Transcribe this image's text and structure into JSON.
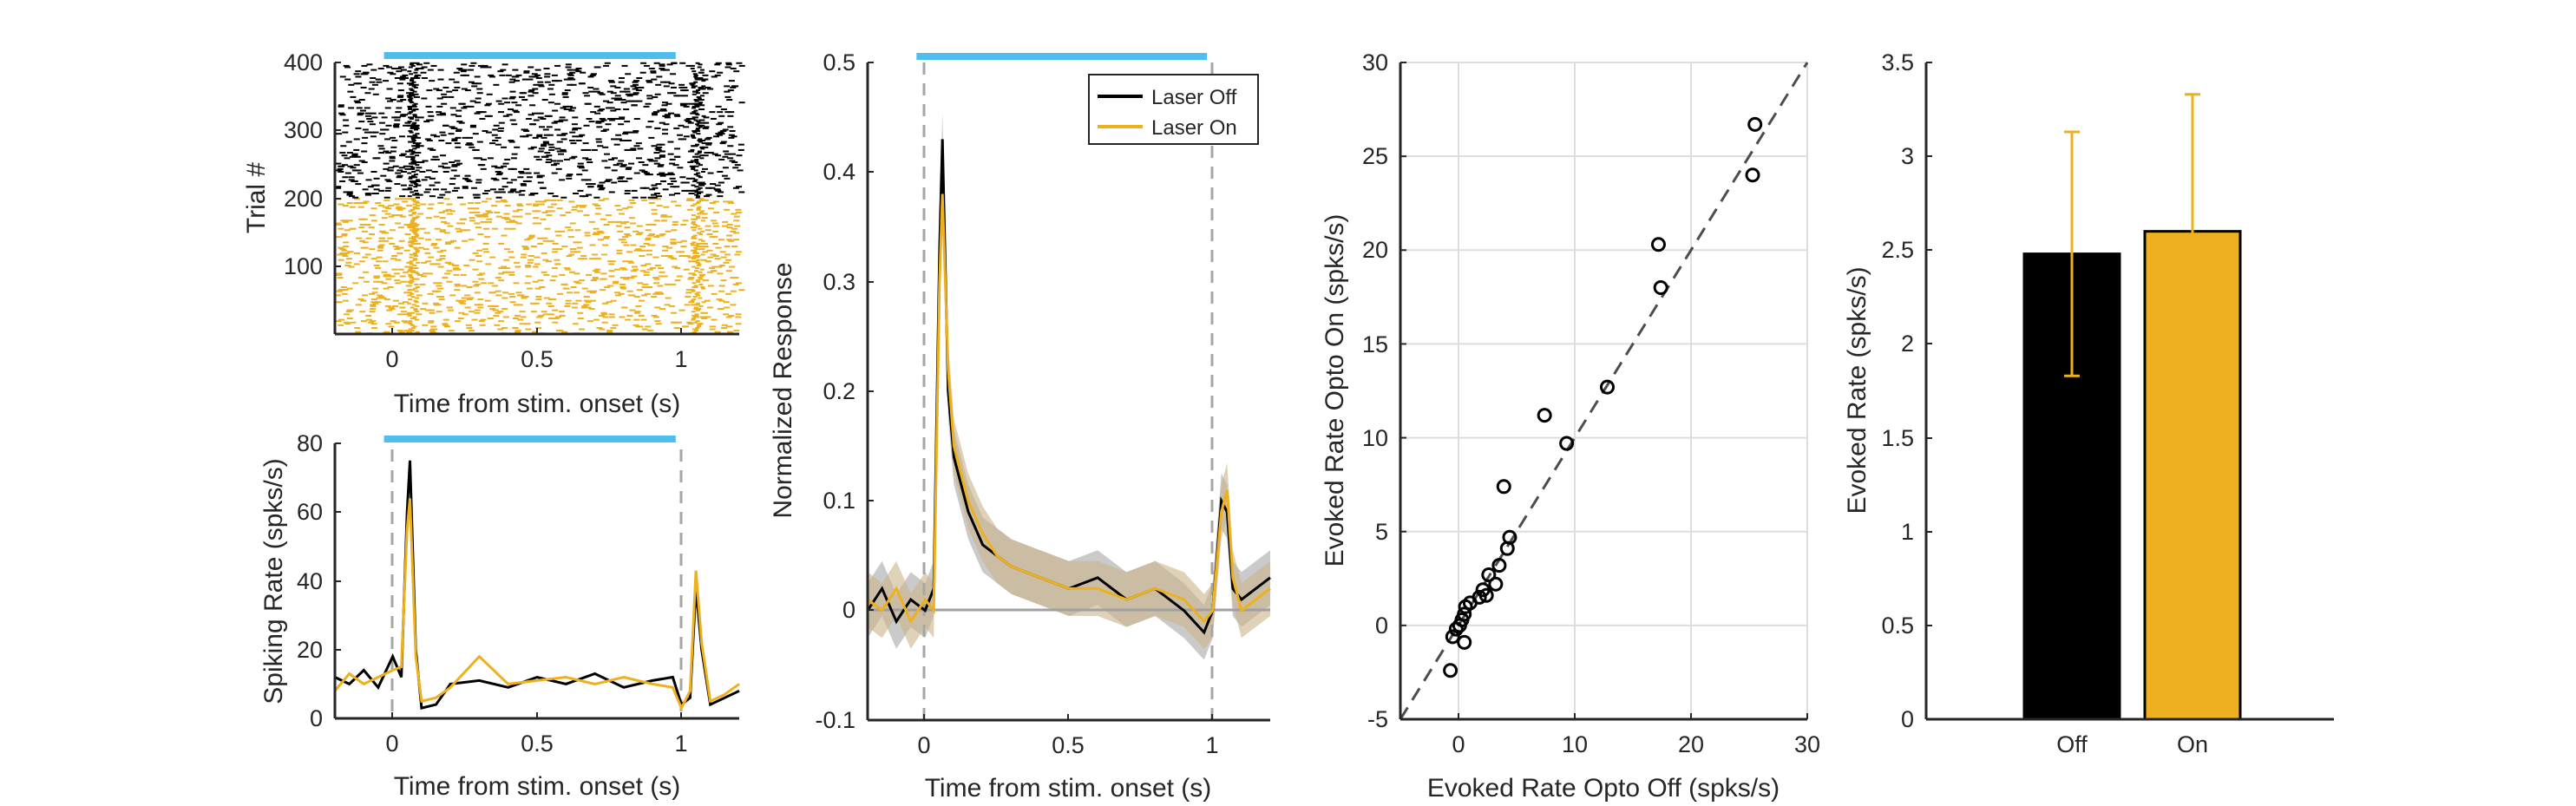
{
  "colors": {
    "off": "#000000",
    "on": "#EDB120",
    "stim_bar": "#4DBEEE",
    "dash": "#A6A6A6",
    "grid": "#DDDDDD",
    "axis": "#262626",
    "shade_on": "#C9B48A",
    "shade_off": "#9E9E9E"
  },
  "chart_data": [
    {
      "id": "raster",
      "type": "scatter",
      "ylabel": "Trial #",
      "xlabel": "Time from stim. onset (s)",
      "xlim": [
        -0.2,
        1.2
      ],
      "ylim": [
        0,
        400
      ],
      "xticks": [
        "0",
        "0.5",
        "1"
      ],
      "xtick_values": [
        0,
        0.5,
        1
      ],
      "yticks": [
        "100",
        "200",
        "300",
        "400"
      ],
      "ytick_values": [
        100,
        200,
        300,
        400
      ],
      "stim_bar": [
        -0.03,
        0.98
      ],
      "series": [
        {
          "trials": [
            1,
            200
          ],
          "color": "on"
        },
        {
          "trials": [
            201,
            400
          ],
          "color": "off"
        }
      ]
    },
    {
      "id": "psth",
      "type": "line",
      "ylabel": "Spiking Rate (spks/s)",
      "xlabel": "Time from stim. onset (s)",
      "xlim": [
        -0.2,
        1.2
      ],
      "ylim": [
        0,
        80
      ],
      "xticks": [
        "0",
        "0.5",
        "1"
      ],
      "xtick_values": [
        0,
        0.5,
        1
      ],
      "yticks": [
        "0",
        "20",
        "40",
        "60",
        "80"
      ],
      "ytick_values": [
        0,
        20,
        40,
        60,
        80
      ],
      "stim_bar": [
        -0.03,
        0.98
      ],
      "dashed_x": [
        0,
        1
      ],
      "series": [
        {
          "color": "off",
          "x": [
            -0.2,
            -0.15,
            -0.1,
            -0.05,
            0.0,
            0.03,
            0.05,
            0.06,
            0.08,
            0.1,
            0.15,
            0.2,
            0.3,
            0.4,
            0.5,
            0.6,
            0.7,
            0.8,
            0.9,
            0.97,
            1.0,
            1.03,
            1.05,
            1.07,
            1.1,
            1.15,
            1.2
          ],
          "y": [
            12,
            10,
            14,
            9,
            18,
            12,
            60,
            75,
            20,
            3,
            4,
            10,
            11,
            9,
            12,
            10,
            13,
            9,
            11,
            12,
            4,
            6,
            38,
            20,
            4,
            6,
            8
          ]
        },
        {
          "color": "on",
          "x": [
            -0.2,
            -0.15,
            -0.1,
            -0.05,
            0.0,
            0.03,
            0.05,
            0.06,
            0.08,
            0.1,
            0.15,
            0.2,
            0.3,
            0.4,
            0.5,
            0.6,
            0.7,
            0.8,
            0.9,
            0.97,
            1.0,
            1.03,
            1.05,
            1.07,
            1.1,
            1.15,
            1.2
          ],
          "y": [
            8,
            13,
            10,
            12,
            14,
            15,
            55,
            64,
            18,
            5,
            6,
            9,
            18,
            10,
            11,
            12,
            10,
            12,
            10,
            9,
            3,
            8,
            43,
            22,
            5,
            7,
            10
          ]
        }
      ]
    },
    {
      "id": "norm",
      "type": "line",
      "ylabel": "Normalized Response",
      "xlabel": "Time from stim. onset (s)",
      "xlim": [
        -0.2,
        1.2
      ],
      "ylim": [
        -0.1,
        0.5
      ],
      "xticks": [
        "0",
        "0.5",
        "1"
      ],
      "xtick_values": [
        0,
        0.5,
        1
      ],
      "yticks": [
        "-0.1",
        "0",
        "0.1",
        "0.2",
        "0.3",
        "0.4",
        "0.5"
      ],
      "ytick_values": [
        -0.1,
        0,
        0.1,
        0.2,
        0.3,
        0.4,
        0.5
      ],
      "stim_bar": [
        -0.03,
        0.98
      ],
      "dashed_x": [
        0,
        1
      ],
      "legend": {
        "position": "top-right",
        "entries": [
          {
            "label": "Laser Off",
            "color": "off"
          },
          {
            "label": "Laser On",
            "color": "on"
          }
        ]
      },
      "series": [
        {
          "name": "Laser Off",
          "color": "off",
          "x": [
            -0.2,
            -0.15,
            -0.1,
            -0.05,
            0.0,
            0.03,
            0.05,
            0.06,
            0.08,
            0.1,
            0.15,
            0.2,
            0.25,
            0.3,
            0.4,
            0.5,
            0.6,
            0.7,
            0.8,
            0.9,
            0.97,
            1.0,
            1.03,
            1.05,
            1.07,
            1.1,
            1.15,
            1.2
          ],
          "y": [
            0.0,
            0.02,
            -0.01,
            0.01,
            0.0,
            0.02,
            0.33,
            0.43,
            0.2,
            0.14,
            0.09,
            0.06,
            0.05,
            0.04,
            0.03,
            0.02,
            0.03,
            0.01,
            0.02,
            0.0,
            -0.02,
            0.0,
            0.1,
            0.09,
            0.02,
            0.01,
            0.02,
            0.03
          ]
        },
        {
          "name": "Laser On",
          "color": "on",
          "x": [
            -0.2,
            -0.15,
            -0.1,
            -0.05,
            0.0,
            0.03,
            0.05,
            0.06,
            0.08,
            0.1,
            0.15,
            0.2,
            0.25,
            0.3,
            0.4,
            0.5,
            0.6,
            0.7,
            0.8,
            0.9,
            0.97,
            1.0,
            1.03,
            1.05,
            1.07,
            1.1,
            1.15,
            1.2
          ],
          "y": [
            0.01,
            0.0,
            0.02,
            -0.01,
            0.01,
            0.0,
            0.3,
            0.38,
            0.22,
            0.15,
            0.1,
            0.07,
            0.05,
            0.04,
            0.03,
            0.02,
            0.02,
            0.01,
            0.02,
            0.01,
            -0.01,
            0.0,
            0.09,
            0.11,
            0.03,
            0.0,
            0.01,
            0.02
          ]
        }
      ]
    },
    {
      "id": "scatter",
      "type": "scatter",
      "xlabel": "Evoked Rate Opto Off (spks/s)",
      "ylabel": "Evoked Rate Opto On (spks/s)",
      "xlim": [
        -5,
        30
      ],
      "ylim": [
        -5,
        30
      ],
      "xticks": [
        "0",
        "10",
        "20",
        "30"
      ],
      "xtick_values": [
        0,
        10,
        20,
        30
      ],
      "yticks": [
        "-5",
        "0",
        "5",
        "10",
        "15",
        "20",
        "25",
        "30"
      ],
      "ytick_values": [
        -5,
        0,
        5,
        10,
        15,
        20,
        25,
        30
      ],
      "grid": true,
      "identity_line": true,
      "points": [
        {
          "x": 25.5,
          "y": 26.7
        },
        {
          "x": 25.3,
          "y": 24.0
        },
        {
          "x": 17.2,
          "y": 20.3
        },
        {
          "x": 17.4,
          "y": 18.0
        },
        {
          "x": 12.8,
          "y": 12.7
        },
        {
          "x": 7.4,
          "y": 11.2
        },
        {
          "x": 9.3,
          "y": 9.7
        },
        {
          "x": 3.9,
          "y": 7.4
        },
        {
          "x": 4.4,
          "y": 4.7
        },
        {
          "x": 4.2,
          "y": 4.1
        },
        {
          "x": 3.5,
          "y": 3.2
        },
        {
          "x": 2.6,
          "y": 2.7
        },
        {
          "x": 3.2,
          "y": 2.2
        },
        {
          "x": 2.1,
          "y": 1.9
        },
        {
          "x": 1.8,
          "y": 1.5
        },
        {
          "x": 2.4,
          "y": 1.6
        },
        {
          "x": 1.0,
          "y": 1.2
        },
        {
          "x": 0.6,
          "y": 1.0
        },
        {
          "x": 0.5,
          "y": 0.6
        },
        {
          "x": 0.3,
          "y": 0.3
        },
        {
          "x": 0.1,
          "y": 0.0
        },
        {
          "x": -0.2,
          "y": -0.2
        },
        {
          "x": -0.5,
          "y": -0.6
        },
        {
          "x": 0.5,
          "y": -0.9
        },
        {
          "x": -0.7,
          "y": -2.4
        }
      ]
    },
    {
      "id": "bars",
      "type": "bar",
      "ylabel": "Evoked Rate (spks/s)",
      "categories": [
        "Off",
        "On"
      ],
      "values": [
        2.48,
        2.6
      ],
      "error_low": [
        1.83,
        1.86
      ],
      "error_high": [
        3.13,
        3.33
      ],
      "ylim": [
        0,
        3.5
      ],
      "yticks": [
        "0",
        "0.5",
        "1",
        "1.5",
        "2",
        "2.5",
        "3",
        "3.5"
      ],
      "ytick_values": [
        0,
        0.5,
        1,
        1.5,
        2,
        2.5,
        3,
        3.5
      ]
    }
  ]
}
